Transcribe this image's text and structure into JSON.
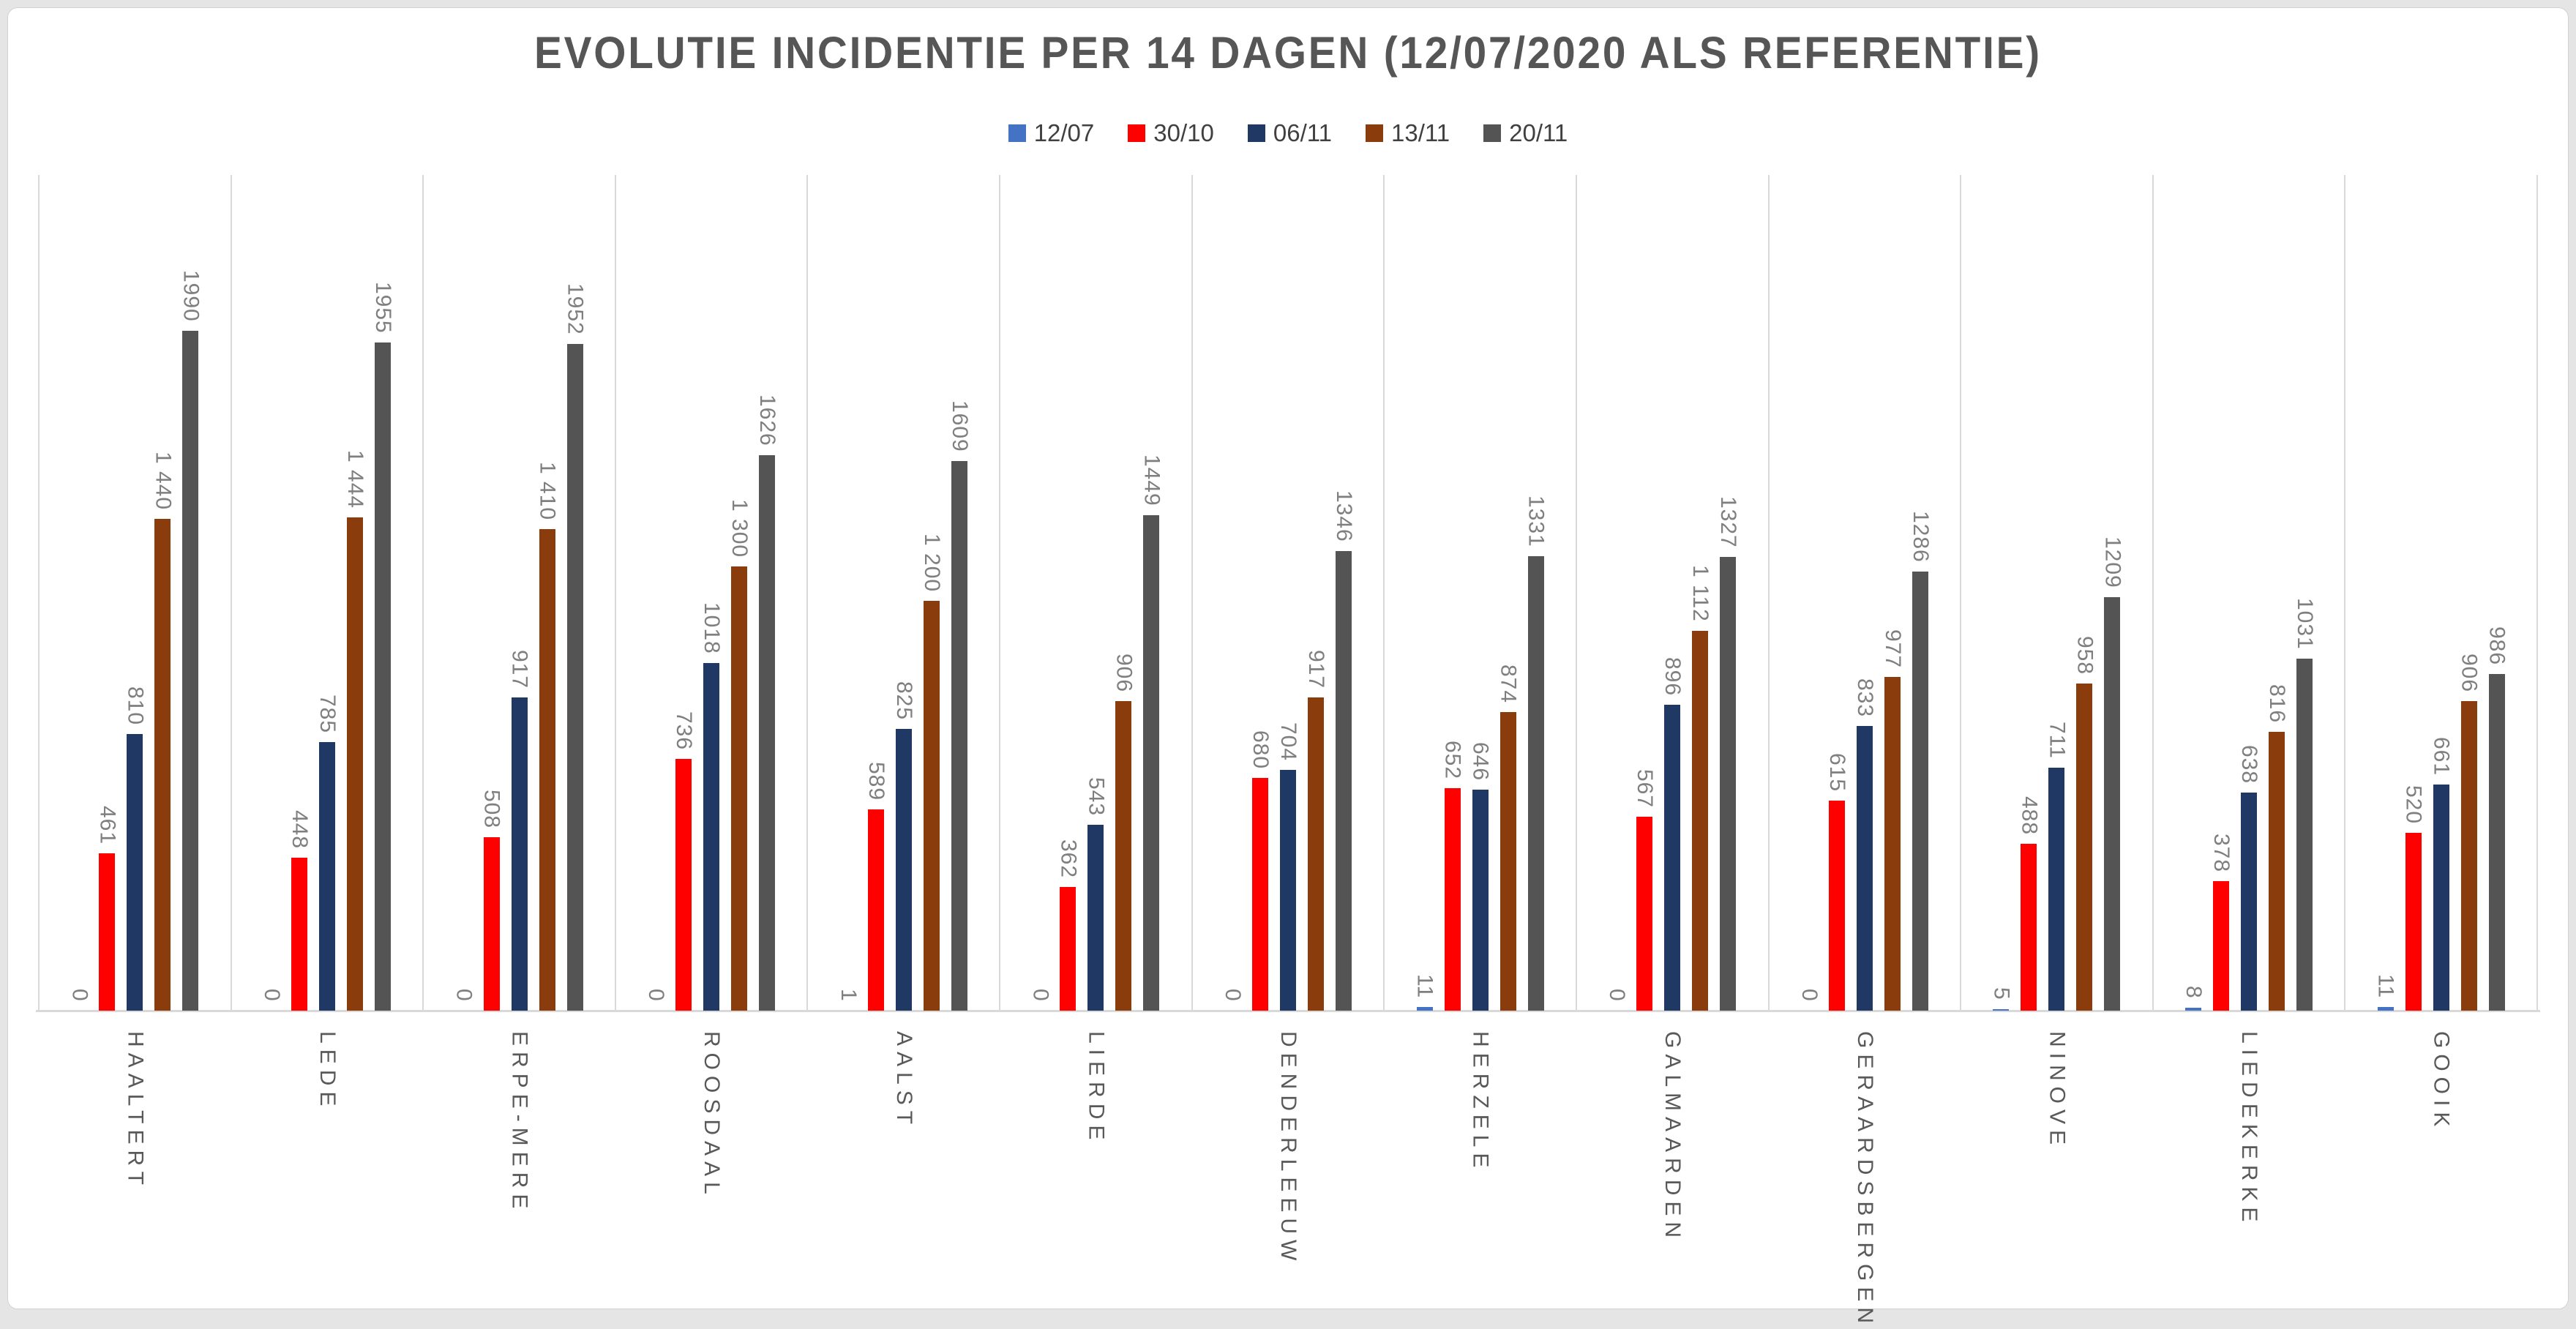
{
  "title": "EVOLUTIE INCIDENTIE PER 14 DAGEN (12/07/2020 ALS REFERENTIE)",
  "chart_data": {
    "type": "bar",
    "title": "EVOLUTIE INCIDENTIE PER 14 DAGEN (12/07/2020 ALS REFERENTIE)",
    "legend_position": "top-center",
    "grid": "vertical-category-separators",
    "ylim": [
      0,
      2450
    ],
    "xlabel": "",
    "ylabel": "",
    "axis_line_color": "#D9D9D9",
    "value_label_color": "#7F7F7F",
    "category_label_color": "#595959",
    "title_color": "#565656",
    "categories": [
      "HAALTERT",
      "LEDE",
      "ERPE-MERE",
      "ROOSDAAL",
      "AALST",
      "LIERDE",
      "DENDERLEEUW",
      "HERZELE",
      "GALMAARDEN",
      "GERAARDSBERGEN",
      "NINOVE",
      "LIEDEKERKE",
      "GOOIK"
    ],
    "series": [
      {
        "name": "12/07",
        "color": "#4472C4",
        "values": [
          0,
          0,
          0,
          0,
          1,
          0,
          0,
          11,
          0,
          0,
          5,
          8,
          11
        ],
        "labels": [
          "0",
          "0",
          "0",
          "0",
          "1",
          "0",
          "0",
          "11",
          "0",
          "0",
          "5",
          "8",
          "11"
        ]
      },
      {
        "name": "30/10",
        "color": "#FF0000",
        "values": [
          461,
          448,
          508,
          736,
          589,
          362,
          680,
          652,
          567,
          615,
          488,
          378,
          520
        ],
        "labels": [
          "461",
          "448",
          "508",
          "736",
          "589",
          "362",
          "680",
          "652",
          "567",
          "615",
          "488",
          "378",
          "520"
        ]
      },
      {
        "name": "06/11",
        "color": "#1F3864",
        "values": [
          810,
          785,
          917,
          1018,
          825,
          543,
          704,
          646,
          896,
          833,
          711,
          638,
          661
        ],
        "labels": [
          "810",
          "785",
          "917",
          "1018",
          "825",
          "543",
          "704",
          "646",
          "896",
          "833",
          "711",
          "638",
          "661"
        ]
      },
      {
        "name": "13/11",
        "color": "#8A3C0C",
        "values": [
          1440,
          1444,
          1410,
          1300,
          1200,
          906,
          917,
          874,
          1112,
          977,
          958,
          816,
          906
        ],
        "labels": [
          "1 440",
          "1 444",
          "1 410",
          "1 300",
          "1 200",
          "906",
          "917",
          "874",
          "1 112",
          "977",
          "958",
          "816",
          "906"
        ]
      },
      {
        "name": "20/11",
        "color": "#545454",
        "values": [
          1990,
          1955,
          1952,
          1626,
          1609,
          1449,
          1346,
          1331,
          1327,
          1286,
          1209,
          1031,
          986
        ],
        "labels": [
          "1990",
          "1955",
          "1952",
          "1626",
          "1609",
          "1449",
          "1346",
          "1331",
          "1327",
          "1286",
          "1209",
          "1031",
          "986"
        ]
      }
    ]
  }
}
